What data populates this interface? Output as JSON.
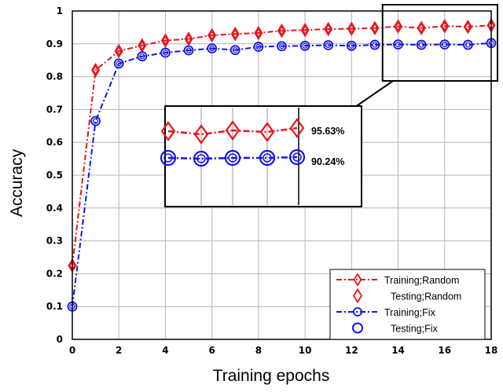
{
  "chart_data": {
    "type": "line",
    "title": "",
    "xlabel": "Training epochs",
    "ylabel": "Accuracy",
    "xlim": [
      0,
      18
    ],
    "ylim": [
      0,
      1
    ],
    "xticks": [
      "0",
      "2",
      "4",
      "6",
      "8",
      "10",
      "12",
      "14",
      "16",
      "18"
    ],
    "yticks": [
      "0",
      "0.1",
      "0.2",
      "0.3",
      "0.4",
      "0.5",
      "0.6",
      "0.7",
      "0.8",
      "0.9",
      "1"
    ],
    "grid": true,
    "legend_position": "bottom-right",
    "series": [
      {
        "name": "Training;Random",
        "color": "#e8141c",
        "line": "dash-dot",
        "marker": "diamond",
        "x": [
          0,
          1,
          2,
          3,
          4,
          5,
          6,
          7,
          8,
          9,
          10,
          11,
          12,
          13,
          14,
          15,
          16,
          17,
          18
        ],
        "values": [
          0.225,
          0.82,
          0.878,
          0.895,
          0.91,
          0.915,
          0.926,
          0.93,
          0.933,
          0.94,
          0.942,
          0.945,
          0.946,
          0.948,
          0.953,
          0.948,
          0.954,
          0.952,
          0.9563
        ]
      },
      {
        "name": "Testing;Random",
        "color": "#e8141c",
        "line": "none",
        "marker": "diamond-open",
        "x": [
          0,
          1,
          2,
          3,
          4,
          5,
          6,
          7,
          8,
          9,
          10,
          11,
          12,
          13,
          14,
          15,
          16,
          17,
          18
        ],
        "values": [
          0.225,
          0.82,
          0.878,
          0.895,
          0.91,
          0.915,
          0.926,
          0.93,
          0.933,
          0.94,
          0.942,
          0.945,
          0.946,
          0.948,
          0.953,
          0.948,
          0.954,
          0.952,
          0.9563
        ]
      },
      {
        "name": "Training;Fix",
        "color": "#1414e6",
        "line": "dash-dot",
        "marker": "circle",
        "x": [
          0,
          1,
          2,
          3,
          4,
          5,
          6,
          7,
          8,
          9,
          10,
          11,
          12,
          13,
          14,
          15,
          16,
          17,
          18
        ],
        "values": [
          0.1,
          0.665,
          0.84,
          0.862,
          0.873,
          0.88,
          0.886,
          0.881,
          0.891,
          0.893,
          0.894,
          0.896,
          0.894,
          0.897,
          0.898,
          0.897,
          0.898,
          0.897,
          0.9024
        ]
      },
      {
        "name": "Testing;Fix",
        "color": "#1414e6",
        "line": "none",
        "marker": "circle-open",
        "x": [
          0,
          1,
          2,
          3,
          4,
          5,
          6,
          7,
          8,
          9,
          10,
          11,
          12,
          13,
          14,
          15,
          16,
          17,
          18
        ],
        "values": [
          0.1,
          0.665,
          0.84,
          0.862,
          0.873,
          0.88,
          0.886,
          0.881,
          0.891,
          0.893,
          0.894,
          0.896,
          0.894,
          0.897,
          0.898,
          0.897,
          0.898,
          0.897,
          0.9024
        ]
      }
    ],
    "inset": {
      "zoom_x": [
        13.5,
        18
      ],
      "annotations": [
        "95.63%",
        "90.24%"
      ]
    }
  }
}
